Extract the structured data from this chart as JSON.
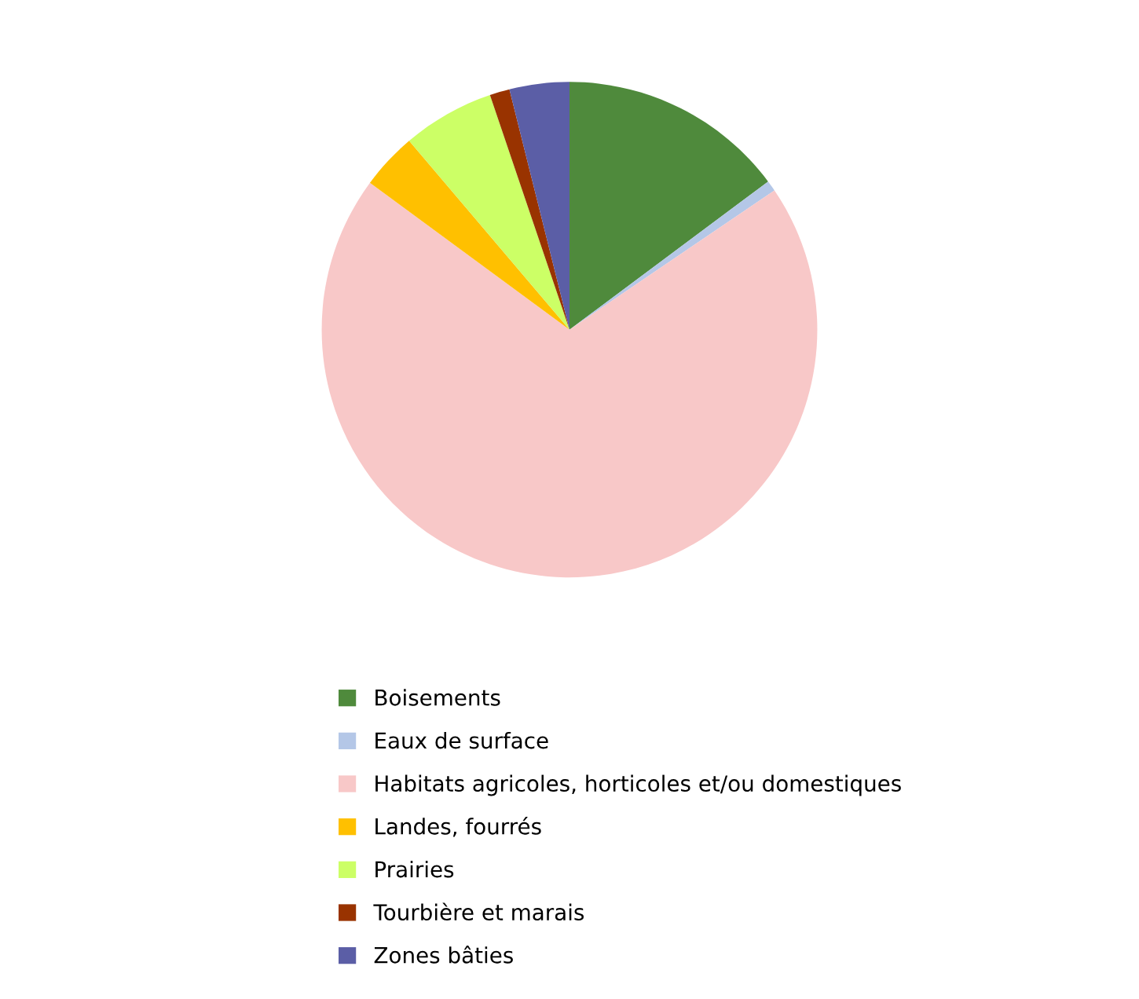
{
  "chart_data": {
    "type": "pie",
    "categories": [
      "Boisements",
      "Eaux de surface",
      "Habitats agricoles, horticoles et/ou domestiques",
      "Landes, fourrés",
      "Prairies",
      "Tourbière et marais",
      "Zones bâties"
    ],
    "values": [
      14.8,
      0.7,
      69.6,
      3.7,
      6.0,
      1.3,
      3.9
    ],
    "colors": [
      "#4f8a3c",
      "#b4c7e7",
      "#f8c8c8",
      "#ffc000",
      "#ccff66",
      "#993300",
      "#5b5ea6"
    ],
    "legend": "bottom"
  }
}
